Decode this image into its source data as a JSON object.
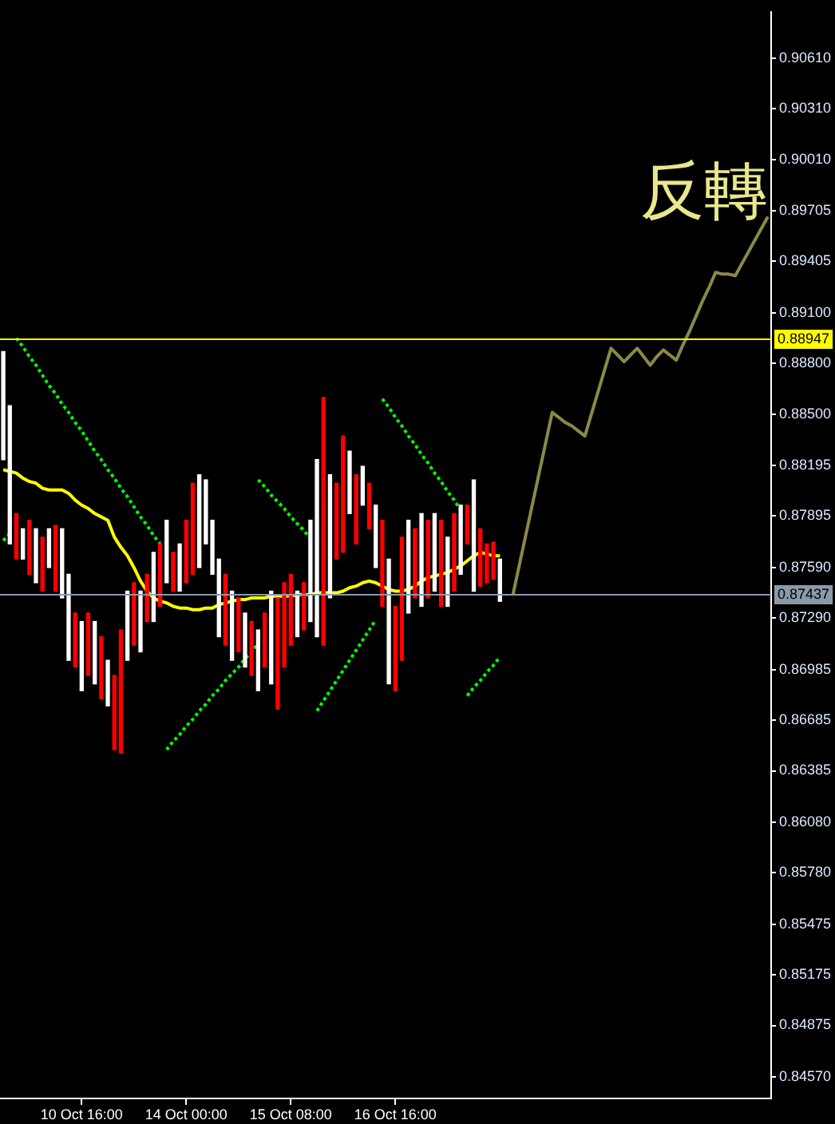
{
  "chart_data": {
    "type": "candlestick",
    "categories": [
      null,
      null,
      null,
      null,
      null,
      null,
      null,
      null,
      null,
      null,
      null,
      null,
      "10 Oct 16:00",
      null,
      null,
      null,
      null,
      null,
      null,
      null,
      null,
      null,
      null,
      null,
      null,
      null,
      null,
      null,
      "14 Oct 00:00",
      null,
      null,
      null,
      null,
      null,
      null,
      null,
      null,
      null,
      null,
      null,
      null,
      null,
      null,
      null,
      "15 Oct 08:00",
      null,
      null,
      null,
      null,
      null,
      null,
      null,
      null,
      null,
      null,
      null,
      null,
      null,
      null,
      null,
      "16 Oct 16:00",
      null,
      null,
      null,
      null,
      null,
      null,
      null,
      null,
      null,
      null,
      null,
      null,
      null,
      null,
      null,
      null,
      null,
      null,
      null,
      null,
      null,
      null,
      null,
      null,
      null,
      null,
      null,
      null,
      null,
      null,
      null,
      null,
      null,
      null,
      null,
      null,
      null,
      null,
      null,
      null,
      null,
      null,
      null,
      null,
      null,
      null,
      null,
      null,
      null,
      null,
      null,
      null,
      null,
      null,
      null,
      null,
      null
    ],
    "ohlc": [
      [
        0.8823,
        0.8887,
        0.8823,
        0.8887
      ],
      [
        0.8773,
        0.8855,
        0.8773,
        0.8855
      ],
      [
        0.8791,
        0.8791,
        0.8764,
        0.8764
      ],
      [
        0.8764,
        0.8782,
        0.8764,
        0.8782
      ],
      [
        0.8787,
        0.8787,
        0.8755,
        0.8755
      ],
      [
        0.875,
        0.8782,
        0.875,
        0.8782
      ],
      [
        0.8777,
        0.8777,
        0.8745,
        0.8745
      ],
      [
        0.8759,
        0.8782,
        0.8759,
        0.8782
      ],
      [
        0.8784,
        0.8784,
        0.8745,
        0.8745
      ],
      [
        0.8741,
        0.8782,
        0.8741,
        0.8782
      ],
      [
        0.8704,
        0.8755,
        0.8704,
        0.8755
      ],
      [
        0.8732,
        0.8732,
        0.87,
        0.87
      ],
      [
        0.8686,
        0.8727,
        0.8686,
        0.8727
      ],
      [
        0.8732,
        0.8732,
        0.8695,
        0.8695
      ],
      [
        0.869,
        0.8727,
        0.869,
        0.8727
      ],
      [
        0.8718,
        0.8718,
        0.8681,
        0.8681
      ],
      [
        0.8677,
        0.8704,
        0.8677,
        0.8704
      ],
      [
        0.8695,
        0.8695,
        0.8651,
        0.8651
      ],
      [
        0.8722,
        0.8722,
        0.8649,
        0.8649
      ],
      [
        0.8704,
        0.8745,
        0.8704,
        0.8745
      ],
      [
        0.875,
        0.875,
        0.8713,
        0.8713
      ],
      [
        0.8709,
        0.8745,
        0.8709,
        0.8745
      ],
      [
        0.8755,
        0.8755,
        0.8727,
        0.8727
      ],
      [
        0.8727,
        0.8768,
        0.8727,
        0.8768
      ],
      [
        0.8773,
        0.8773,
        0.8736,
        0.8736
      ],
      [
        0.875,
        0.8787,
        0.875,
        0.8787
      ],
      [
        0.8768,
        0.8768,
        0.8745,
        0.8745
      ],
      [
        0.8745,
        0.8773,
        0.8745,
        0.8773
      ],
      [
        0.8787,
        0.8787,
        0.875,
        0.875
      ],
      [
        0.8809,
        0.8809,
        0.8755,
        0.8755
      ],
      [
        0.8759,
        0.8814,
        0.8759,
        0.8814
      ],
      [
        0.8773,
        0.8811,
        0.8773,
        0.8811
      ],
      [
        0.8755,
        0.8787,
        0.8755,
        0.8787
      ],
      [
        0.8718,
        0.8764,
        0.8718,
        0.8764
      ],
      [
        0.8755,
        0.8755,
        0.8713,
        0.8713
      ],
      [
        0.8704,
        0.8745,
        0.8704,
        0.8745
      ],
      [
        0.8741,
        0.8741,
        0.8709,
        0.8709
      ],
      [
        0.87,
        0.8732,
        0.87,
        0.8732
      ],
      [
        0.8727,
        0.8727,
        0.8695,
        0.8695
      ],
      [
        0.8686,
        0.8722,
        0.8686,
        0.8722
      ],
      [
        0.8732,
        0.8732,
        0.87,
        0.87
      ],
      [
        0.869,
        0.8745,
        0.869,
        0.8745
      ],
      [
        0.8741,
        0.8741,
        0.8675,
        0.8675
      ],
      [
        0.875,
        0.875,
        0.87,
        0.87
      ],
      [
        0.8755,
        0.8755,
        0.8713,
        0.8713
      ],
      [
        0.8718,
        0.8745,
        0.8718,
        0.8745
      ],
      [
        0.875,
        0.875,
        0.8722,
        0.8722
      ],
      [
        0.8727,
        0.8787,
        0.8727,
        0.8787
      ],
      [
        0.8718,
        0.8823,
        0.8718,
        0.8823
      ],
      [
        0.886,
        0.886,
        0.8713,
        0.8713
      ],
      [
        0.8741,
        0.8814,
        0.8741,
        0.8814
      ],
      [
        0.8809,
        0.8809,
        0.8764,
        0.8764
      ],
      [
        0.8837,
        0.8837,
        0.8768,
        0.8768
      ],
      [
        0.8791,
        0.8828,
        0.8791,
        0.8828
      ],
      [
        0.8814,
        0.8814,
        0.8773,
        0.8773
      ],
      [
        0.8796,
        0.8819,
        0.8796,
        0.8819
      ],
      [
        0.8809,
        0.8809,
        0.8782,
        0.8782
      ],
      [
        0.8759,
        0.8796,
        0.8759,
        0.8796
      ],
      [
        0.8787,
        0.8787,
        0.8736,
        0.8736
      ],
      [
        0.869,
        0.8764,
        0.869,
        0.8764
      ],
      [
        0.8736,
        0.8736,
        0.8686,
        0.8686
      ],
      [
        0.8777,
        0.8777,
        0.8704,
        0.8704
      ],
      [
        0.8732,
        0.8787,
        0.8732,
        0.8787
      ],
      [
        0.8782,
        0.8782,
        0.8741,
        0.8741
      ],
      [
        0.8736,
        0.8791,
        0.8736,
        0.8791
      ],
      [
        0.8787,
        0.8787,
        0.8741,
        0.8741
      ],
      [
        0.8745,
        0.8791,
        0.8745,
        0.8791
      ],
      [
        0.8787,
        0.8787,
        0.8736,
        0.8736
      ],
      [
        0.8736,
        0.8777,
        0.8736,
        0.8777
      ],
      [
        0.8791,
        0.8791,
        0.8745,
        0.8745
      ],
      [
        0.8755,
        0.8796,
        0.8755,
        0.8796
      ],
      [
        0.8796,
        0.8796,
        0.8773,
        0.8773
      ],
      [
        0.8745,
        0.8811,
        0.8745,
        0.8811
      ],
      [
        0.8782,
        0.8782,
        0.8748,
        0.8748
      ],
      [
        0.8773,
        0.8773,
        0.875,
        0.875
      ],
      [
        0.8774,
        0.8774,
        0.8752,
        0.8752
      ],
      [
        0.8739,
        0.8764,
        0.8739,
        0.8764
      ],
      null,
      null,
      null,
      null,
      null,
      null,
      null,
      null,
      null,
      null,
      null,
      null,
      null,
      null,
      null,
      null,
      null,
      null,
      null,
      null,
      null,
      null,
      null,
      null,
      null,
      null,
      null,
      null,
      null,
      null,
      null,
      null,
      null,
      null,
      null,
      null,
      null,
      null,
      null,
      null,
      null
    ],
    "colors": [
      "#ffffff",
      "#ffffff",
      "#ff0000",
      "#ffffff",
      "#ff0000",
      "#ffffff",
      "#ff0000",
      "#ffffff",
      "#ff0000",
      "#ffffff",
      "#ffffff",
      "#ff0000",
      "#ffffff",
      "#ff0000",
      "#ffffff",
      "#ff0000",
      "#ffffff",
      "#ff0000",
      "#ff0000",
      "#ffffff",
      "#ff0000",
      "#ffffff",
      "#ff0000",
      "#ffffff",
      "#ff0000",
      "#ffffff",
      "#ff0000",
      "#ffffff",
      "#ff0000",
      "#ff0000",
      "#ffffff",
      "#ffffff",
      "#ffffff",
      "#ffffff",
      "#ff0000",
      "#ffffff",
      "#ff0000",
      "#ffffff",
      "#ff0000",
      "#ffffff",
      "#ff0000",
      "#ffffff",
      "#ff0000",
      "#ff0000",
      "#ff0000",
      "#ffffff",
      "#ff0000",
      "#ffffff",
      "#ffffff",
      "#ff0000",
      "#ffffff",
      "#ff0000",
      "#ff0000",
      "#ffffff",
      "#ff0000",
      "#ffffff",
      "#ff0000",
      "#ffffff",
      "#ff0000",
      "#ffffff",
      "#ff0000",
      "#ff0000",
      "#ffffff",
      "#ff0000",
      "#ffffff",
      "#ff0000",
      "#ffffff",
      "#ff0000",
      "#ffffff",
      "#ff0000",
      "#ffffff",
      "#ff0000",
      "#ffffff",
      "#ff0000",
      "#ff0000",
      "#ff0000",
      "#ffffff",
      "#ff0000",
      "#ffffff",
      "#ff0000",
      "#ffffff",
      null,
      null,
      null,
      null,
      null,
      null,
      null,
      null,
      null,
      null,
      null,
      null,
      null,
      null,
      null,
      null,
      null,
      null,
      null,
      null,
      null,
      null,
      null,
      null,
      null,
      null,
      null,
      null,
      null,
      null,
      null,
      null,
      null,
      null,
      null,
      null,
      null
    ],
    "series": [
      {
        "type": "line",
        "color": "#ffff00",
        "line_style": "solid",
        "values": [
          0.8817,
          0.8816,
          0.8815,
          0.8812,
          0.881,
          0.8809,
          0.8806,
          0.8805,
          0.8805,
          0.8805,
          0.8803,
          0.8799,
          0.8796,
          0.8794,
          0.8791,
          0.8789,
          0.8787,
          0.8777,
          0.8771,
          0.8766,
          0.8759,
          0.8751,
          0.8745,
          0.8741,
          0.8739,
          0.8738,
          0.8736,
          0.8735,
          0.8735,
          0.8734,
          0.8734,
          0.8735,
          0.8735,
          0.8737,
          0.8738,
          0.8739,
          0.874,
          0.874,
          0.8741,
          0.8741,
          0.8741,
          0.8742,
          0.8742,
          0.8742,
          0.8742,
          0.8743,
          0.8743,
          0.8743,
          0.8744,
          0.8744,
          0.8744,
          0.8744,
          0.8745,
          0.8747,
          0.8748,
          0.875,
          0.8751,
          0.875,
          0.8748,
          0.8746,
          0.8745,
          0.8745,
          0.8746,
          0.8748,
          0.8751,
          0.8753,
          0.8754,
          0.8755,
          0.8756,
          0.8758,
          0.876,
          0.8763,
          0.8766,
          0.8768,
          0.8767,
          0.8766,
          0.8766,
          null,
          null,
          null,
          null,
          null,
          null,
          null,
          null,
          null,
          null,
          null,
          null,
          null,
          null,
          null,
          null,
          null,
          null,
          null,
          null,
          null,
          null,
          null,
          null,
          null,
          null,
          null,
          null,
          null,
          null,
          null,
          null,
          null,
          null,
          null,
          null,
          null,
          null,
          null,
          null,
          null
        ]
      },
      {
        "type": "line",
        "color": "#00ff00",
        "line_style": "dotted",
        "values": [
          null,
          null,
          0.8895,
          0.889,
          0.8884,
          0.8879,
          0.8873,
          0.8867,
          0.8862,
          0.8856,
          0.8851,
          0.8845,
          0.884,
          0.8834,
          0.8828,
          0.8823,
          0.8817,
          0.8812,
          0.8806,
          0.8801,
          0.8795,
          0.8789,
          0.8784,
          0.8778,
          0.8773,
          null,
          null,
          null,
          null,
          null,
          null,
          null,
          null,
          null,
          null,
          null,
          null,
          null,
          null,
          null,
          null,
          null,
          null,
          null,
          null,
          null,
          null,
          null,
          null,
          null,
          null,
          null,
          null,
          null,
          null,
          null,
          null,
          null,
          null,
          null,
          null,
          null,
          null,
          null,
          null,
          null,
          null,
          null,
          null,
          null,
          null,
          null,
          null,
          null,
          null,
          null,
          null,
          null,
          null,
          null,
          null,
          null,
          null,
          null,
          null,
          null,
          null,
          null,
          null,
          null,
          null,
          null,
          null,
          null,
          null,
          null,
          null,
          null,
          null,
          null,
          null,
          null,
          null,
          null,
          null,
          null,
          null,
          null,
          null,
          null,
          null,
          null,
          null,
          null,
          null,
          null,
          null,
          null
        ]
      },
      {
        "type": "line",
        "color": "#00ff00",
        "line_style": "dotted",
        "values": [
          0.8775,
          0.8779,
          null,
          null,
          null,
          null,
          null,
          null,
          null,
          null,
          null,
          null,
          null,
          null,
          null,
          null,
          null,
          null,
          null,
          null,
          null,
          null,
          null,
          null,
          null,
          null,
          null,
          null,
          null,
          null,
          null,
          null,
          null,
          null,
          null,
          null,
          null,
          null,
          null,
          null,
          null,
          null,
          null,
          null,
          null,
          null,
          null,
          null,
          null,
          null,
          null,
          null,
          null,
          null,
          null,
          null,
          null,
          null,
          null,
          null,
          null,
          null,
          null,
          null,
          null,
          null,
          null,
          null,
          null,
          null,
          null,
          null,
          null,
          null,
          null,
          null,
          null,
          null,
          null,
          null,
          null,
          null,
          null,
          null,
          null,
          null,
          null,
          null,
          null,
          null,
          null,
          null,
          null,
          null,
          null,
          null,
          null,
          null,
          null,
          null,
          null,
          null,
          null,
          null,
          null,
          null,
          null,
          null,
          null,
          null,
          null,
          null,
          null,
          null,
          null,
          null,
          null,
          null
        ]
      },
      {
        "type": "line",
        "color": "#00ff00",
        "line_style": "dotted",
        "values": [
          null,
          null,
          null,
          null,
          null,
          null,
          null,
          null,
          null,
          null,
          null,
          null,
          null,
          null,
          null,
          null,
          null,
          null,
          null,
          null,
          null,
          null,
          null,
          null,
          null,
          0.8651,
          0.8656,
          0.866,
          0.8665,
          0.8669,
          0.8674,
          0.8678,
          0.8683,
          0.8687,
          0.8692,
          0.8696,
          0.87,
          0.8705,
          0.8709,
          0.8714,
          null,
          null,
          null,
          null,
          null,
          null,
          null,
          null,
          null,
          null,
          null,
          null,
          null,
          null,
          null,
          null,
          null,
          null,
          null,
          null,
          null,
          null,
          null,
          null,
          null,
          null,
          null,
          null,
          null,
          null,
          null,
          null,
          null,
          null,
          null,
          null,
          null,
          null,
          null,
          null,
          null,
          null,
          null,
          null,
          null,
          null,
          null,
          null,
          null,
          null,
          null,
          null,
          null,
          null,
          null,
          null,
          null,
          null,
          null,
          null,
          null,
          null,
          null,
          null,
          null,
          null,
          null,
          null,
          null,
          null,
          null,
          null,
          null,
          null,
          null,
          null,
          null,
          null
        ]
      },
      {
        "type": "line",
        "color": "#00ff00",
        "line_style": "dotted",
        "values": [
          null,
          null,
          null,
          null,
          null,
          null,
          null,
          null,
          null,
          null,
          null,
          null,
          null,
          null,
          null,
          null,
          null,
          null,
          null,
          null,
          null,
          null,
          null,
          null,
          null,
          null,
          null,
          null,
          null,
          null,
          null,
          null,
          null,
          null,
          null,
          null,
          null,
          null,
          null,
          0.8811,
          0.8807,
          0.8802,
          0.8798,
          0.8794,
          0.8789,
          0.8785,
          0.8781,
          0.8776,
          null,
          null,
          null,
          null,
          null,
          null,
          null,
          null,
          null,
          null,
          null,
          null,
          null,
          null,
          null,
          null,
          null,
          null,
          null,
          null,
          null,
          null,
          null,
          null,
          null,
          null,
          null,
          null,
          null,
          null,
          null,
          null,
          null,
          null,
          null,
          null,
          null,
          null,
          null,
          null,
          null,
          null,
          null,
          null,
          null,
          null,
          null,
          null,
          null,
          null,
          null,
          null,
          null,
          null,
          null,
          null,
          null,
          null,
          null,
          null,
          null,
          null,
          null,
          null,
          null,
          null,
          null,
          null,
          null,
          null
        ]
      },
      {
        "type": "line",
        "color": "#00ff00",
        "line_style": "dotted",
        "values": [
          null,
          null,
          null,
          null,
          null,
          null,
          null,
          null,
          null,
          null,
          null,
          null,
          null,
          null,
          null,
          null,
          null,
          null,
          null,
          null,
          null,
          null,
          null,
          null,
          null,
          null,
          null,
          null,
          null,
          null,
          null,
          null,
          null,
          null,
          null,
          null,
          null,
          null,
          null,
          null,
          null,
          null,
          null,
          null,
          null,
          null,
          null,
          null,
          0.8674,
          0.868,
          0.8686,
          0.8692,
          0.8698,
          0.8704,
          0.871,
          0.8716,
          0.8722,
          0.8728,
          null,
          null,
          null,
          null,
          null,
          null,
          null,
          null,
          null,
          null,
          null,
          null,
          null,
          null,
          null,
          null,
          null,
          null,
          null,
          null,
          null,
          null,
          null,
          null,
          null,
          null,
          null,
          null,
          null,
          null,
          null,
          null,
          null,
          null,
          null,
          null,
          null,
          null,
          null,
          null,
          null,
          null,
          null,
          null,
          null,
          null,
          null,
          null,
          null,
          null,
          null,
          null,
          null,
          null,
          null,
          null,
          null,
          null,
          null,
          null
        ]
      },
      {
        "type": "line",
        "color": "#00ff00",
        "line_style": "dotted",
        "values": [
          null,
          null,
          null,
          null,
          null,
          null,
          null,
          null,
          null,
          null,
          null,
          null,
          null,
          null,
          null,
          null,
          null,
          null,
          null,
          null,
          null,
          null,
          null,
          null,
          null,
          null,
          null,
          null,
          null,
          null,
          null,
          null,
          null,
          null,
          null,
          null,
          null,
          null,
          null,
          null,
          null,
          null,
          null,
          null,
          null,
          null,
          null,
          null,
          null,
          null,
          null,
          null,
          null,
          null,
          null,
          null,
          null,
          null,
          0.8859,
          0.8854,
          0.8848,
          0.8843,
          0.8837,
          0.8832,
          0.8826,
          0.8821,
          0.8815,
          0.881,
          0.8804,
          0.8799,
          0.8793,
          null,
          null,
          null,
          null,
          null,
          null,
          null,
          null,
          null,
          null,
          null,
          null,
          null,
          null,
          null,
          null,
          null,
          null,
          null,
          null,
          null,
          null,
          null,
          null,
          null,
          null,
          null,
          null,
          null,
          null,
          null,
          null,
          null,
          null,
          null,
          null,
          null,
          null,
          null,
          null,
          null,
          null,
          null,
          null,
          null,
          null,
          null
        ]
      },
      {
        "type": "line",
        "color": "#00ff00",
        "line_style": "dotted",
        "values": [
          null,
          null,
          null,
          null,
          null,
          null,
          null,
          null,
          null,
          null,
          null,
          null,
          null,
          null,
          null,
          null,
          null,
          null,
          null,
          null,
          null,
          null,
          null,
          null,
          null,
          null,
          null,
          null,
          null,
          null,
          null,
          null,
          null,
          null,
          null,
          null,
          null,
          null,
          null,
          null,
          null,
          null,
          null,
          null,
          null,
          null,
          null,
          null,
          null,
          null,
          null,
          null,
          null,
          null,
          null,
          null,
          null,
          null,
          null,
          null,
          null,
          null,
          null,
          null,
          null,
          null,
          null,
          null,
          null,
          null,
          null,
          0.8683,
          0.8688,
          0.8692,
          0.8697,
          0.8701,
          0.8706,
          null,
          null,
          null,
          null,
          null,
          null,
          null,
          null,
          null,
          null,
          null,
          null,
          null,
          null,
          null,
          null,
          null,
          null,
          null,
          null,
          null,
          null,
          null,
          null,
          null,
          null,
          null,
          null,
          null,
          null,
          null,
          null,
          null,
          null,
          null,
          null,
          null,
          null,
          null,
          null,
          null
        ]
      },
      {
        "type": "line",
        "color": "#8a8a48",
        "line_style": "solid",
        "values": [
          null,
          null,
          null,
          null,
          null,
          null,
          null,
          null,
          null,
          null,
          null,
          null,
          null,
          null,
          null,
          null,
          null,
          null,
          null,
          null,
          null,
          null,
          null,
          null,
          null,
          null,
          null,
          null,
          null,
          null,
          null,
          null,
          null,
          null,
          null,
          null,
          null,
          null,
          null,
          null,
          null,
          null,
          null,
          null,
          null,
          null,
          null,
          null,
          null,
          null,
          null,
          null,
          null,
          null,
          null,
          null,
          null,
          null,
          null,
          null,
          null,
          null,
          null,
          null,
          null,
          null,
          null,
          null,
          null,
          null,
          null,
          null,
          null,
          null,
          null,
          null,
          null,
          null,
          0.8743,
          0.8761,
          0.8779,
          0.8797,
          0.8815,
          0.8833,
          0.8851,
          0.8848,
          0.8845,
          0.8843,
          0.884,
          0.8837,
          0.885,
          0.8863,
          0.8876,
          0.8889,
          0.8885,
          0.8881,
          0.8885,
          0.8889,
          0.8884,
          0.8879,
          0.8884,
          0.8888,
          0.8885,
          0.8882,
          0.8891,
          0.8899,
          0.8908,
          0.8917,
          0.8925,
          0.8934,
          0.8933,
          0.8933,
          0.8932,
          0.8939,
          0.8946,
          0.8953,
          0.896,
          0.8967
        ]
      }
    ],
    "ylim": [
      0.84442,
      0.90885
    ],
    "yticks": [
      {
        "value": 0.9061,
        "label": "0.90610"
      },
      {
        "value": 0.9031,
        "label": "0.90310"
      },
      {
        "value": 0.9001,
        "label": "0.90010"
      },
      {
        "value": 0.89705,
        "label": "0.89705"
      },
      {
        "value": 0.89405,
        "label": "0.89405"
      },
      {
        "value": 0.891,
        "label": "0.89100"
      },
      {
        "value": 0.888,
        "label": "0.88800"
      },
      {
        "value": 0.885,
        "label": "0.88500"
      },
      {
        "value": 0.88195,
        "label": "0.88195"
      },
      {
        "value": 0.87895,
        "label": "0.87895"
      },
      {
        "value": 0.8759,
        "label": "0.87590"
      },
      {
        "value": 0.8729,
        "label": "0.87290"
      },
      {
        "value": 0.86985,
        "label": "0.86985"
      },
      {
        "value": 0.86685,
        "label": "0.86685"
      },
      {
        "value": 0.86385,
        "label": "0.86385"
      },
      {
        "value": 0.8608,
        "label": "0.86080"
      },
      {
        "value": 0.8578,
        "label": "0.85780"
      },
      {
        "value": 0.85475,
        "label": "0.85475"
      },
      {
        "value": 0.85175,
        "label": "0.85175"
      },
      {
        "value": 0.84875,
        "label": "0.84875"
      },
      {
        "value": 0.8457,
        "label": "0.84570"
      }
    ],
    "ref_lines": [
      {
        "axis": "y",
        "value": 0.88947,
        "label": "0.88947",
        "color": "#ffff00"
      },
      {
        "axis": "y",
        "value": 0.87437,
        "label": "0.87437",
        "color": "#8a9aaa"
      }
    ],
    "annotations": [
      "反轉"
    ],
    "legend": false,
    "grid": false
  }
}
